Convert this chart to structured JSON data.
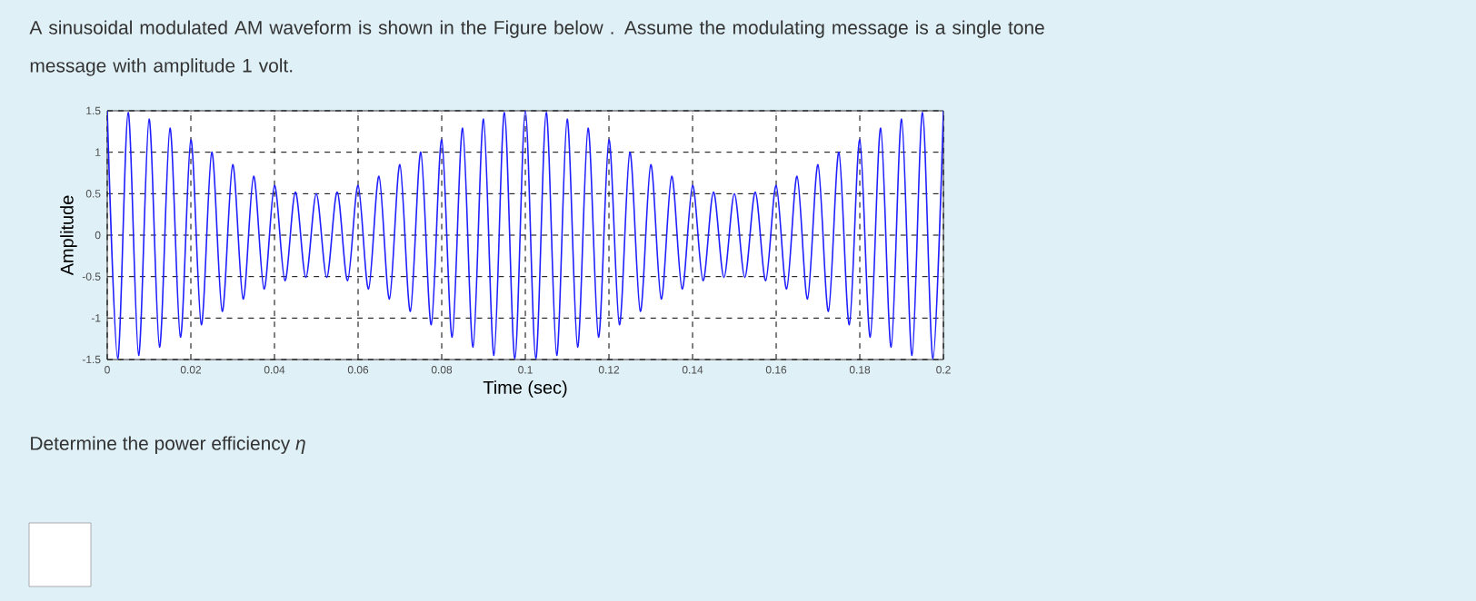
{
  "chart_data": {
    "type": "line",
    "title": "A sinusoidal modulated AM waveform is shown in the Figure below . Assume the modulating message is a single tone message with amplitude 1 volt.",
    "xlabel": "Time (sec)",
    "ylabel": "Amplitude",
    "annotations": [
      "Determine the power efficiency *η*"
    ],
    "x": [
      0,
      0.0025,
      0.005,
      0.0075,
      0.01,
      0.0125,
      0.015,
      0.0175,
      0.02,
      0.0225,
      0.025,
      0.0275,
      0.03,
      0.0325,
      0.035,
      0.0375,
      0.04,
      0.0425,
      0.045,
      0.0475,
      0.05,
      0.0525,
      0.055,
      0.0575,
      0.06,
      0.0625,
      0.065,
      0.0675,
      0.07,
      0.0725,
      0.075,
      0.0775,
      0.08,
      0.0825,
      0.085,
      0.0875,
      0.09,
      0.0925,
      0.095,
      0.0975,
      0.1,
      0.1025,
      0.105,
      0.1075,
      0.11,
      0.1125,
      0.115,
      0.1175,
      0.12,
      0.1225,
      0.125,
      0.1275,
      0.13,
      0.1325,
      0.135,
      0.1375,
      0.14,
      0.1425,
      0.145,
      0.1475,
      0.15,
      0.1525,
      0.155,
      0.1575,
      0.16,
      0.1625,
      0.165,
      0.1675,
      0.17,
      0.1725,
      0.175,
      0.1775,
      0.18,
      0.1825,
      0.185,
      0.1875,
      0.19,
      0.1925,
      0.195,
      0.1975,
      0.2
    ],
    "series": [
      {
        "color": "#2020ff",
        "values": [
          1.5,
          -1.49,
          1.48,
          -1.45,
          1.4,
          -1.35,
          1.29,
          -1.23,
          1.15,
          -1.08,
          1.0,
          -0.92,
          0.85,
          -0.77,
          0.71,
          -0.65,
          0.6,
          -0.55,
          0.52,
          -0.51,
          0.5,
          -0.51,
          0.52,
          -0.55,
          0.6,
          -0.65,
          0.71,
          -0.77,
          0.85,
          -0.92,
          1.0,
          -1.08,
          1.15,
          -1.23,
          1.29,
          -1.35,
          1.4,
          -1.45,
          1.48,
          -1.49,
          1.5,
          -1.49,
          1.48,
          -1.45,
          1.4,
          -1.35,
          1.29,
          -1.23,
          1.15,
          -1.08,
          1.0,
          -0.92,
          0.85,
          -0.77,
          0.71,
          -0.65,
          0.6,
          -0.55,
          0.52,
          -0.51,
          0.5,
          -0.51,
          0.52,
          -0.55,
          0.6,
          -0.65,
          0.71,
          -0.77,
          0.85,
          -0.92,
          1.0,
          -1.08,
          1.15,
          -1.23,
          1.29,
          -1.35,
          1.4,
          -1.45,
          1.48,
          -1.49,
          1.5
        ]
      }
    ],
    "xlim": [
      0,
      0.2
    ],
    "ylim": [
      -1.5,
      1.5
    ],
    "xticks": [
      0,
      0.02,
      0.04,
      0.06,
      0.08,
      0.1,
      0.12,
      0.14,
      0.16,
      0.18,
      0.2
    ],
    "yticks": [
      -1.5,
      -1,
      -0.5,
      0,
      0.5,
      1,
      1.5
    ],
    "grid": true,
    "marker": "none",
    "line_style": "solid"
  }
}
